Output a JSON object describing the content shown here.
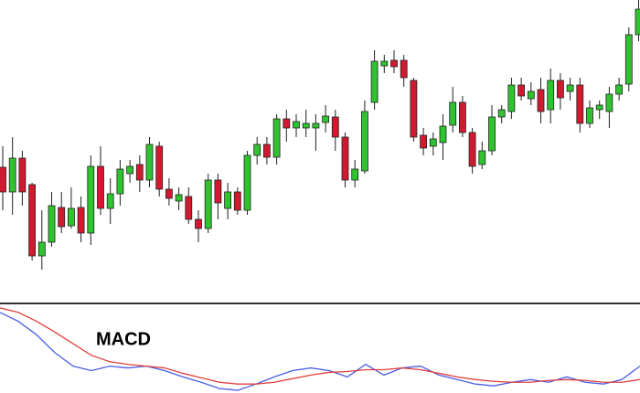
{
  "chart_data": [
    {
      "type": "candlestick",
      "open": [
        117,
        90,
        127,
        98,
        20,
        35,
        73,
        53,
        73,
        45,
        118,
        72,
        88,
        110,
        120,
        103,
        140,
        93,
        80,
        85,
        60,
        50,
        103,
        72,
        90,
        70,
        130,
        142,
        128,
        170,
        160,
        160,
        160,
        166,
        172,
        150,
        103,
        113,
        188,
        228,
        234,
        234,
        212,
        152,
        140,
        144,
        163,
        188,
        155,
        120,
        135,
        172,
        178,
        207,
        192,
        202,
        180,
        212,
        200,
        207,
        165,
        180,
        178,
        197,
        208,
        262
      ],
      "high": [
        140,
        150,
        135,
        100,
        70,
        90,
        90,
        95,
        85,
        130,
        140,
        105,
        125,
        125,
        130,
        150,
        145,
        105,
        95,
        95,
        70,
        110,
        110,
        100,
        95,
        135,
        150,
        150,
        175,
        180,
        175,
        180,
        175,
        185,
        180,
        155,
        125,
        190,
        245,
        240,
        245,
        240,
        215,
        160,
        155,
        175,
        205,
        195,
        160,
        145,
        185,
        185,
        215,
        215,
        210,
        215,
        225,
        220,
        215,
        215,
        190,
        190,
        205,
        215,
        270,
        300
      ],
      "low": [
        70,
        65,
        75,
        15,
        5,
        30,
        45,
        50,
        35,
        32,
        65,
        55,
        75,
        100,
        90,
        95,
        85,
        75,
        70,
        55,
        35,
        45,
        60,
        60,
        65,
        65,
        120,
        120,
        120,
        145,
        150,
        150,
        135,
        155,
        135,
        95,
        95,
        110,
        180,
        220,
        220,
        205,
        145,
        130,
        130,
        125,
        155,
        150,
        110,
        115,
        130,
        165,
        170,
        190,
        185,
        165,
        165,
        180,
        190,
        155,
        160,
        170,
        160,
        190,
        200,
        255
      ],
      "close": [
        90,
        127,
        90,
        20,
        35,
        75,
        52,
        72,
        45,
        118,
        72,
        88,
        115,
        118,
        103,
        142,
        93,
        83,
        87,
        60,
        50,
        103,
        78,
        90,
        70,
        130,
        142,
        128,
        170,
        160,
        167,
        165,
        165,
        173,
        150,
        103,
        115,
        178,
        233,
        233,
        227,
        215,
        150,
        138,
        148,
        162,
        188,
        155,
        118,
        135,
        172,
        180,
        207,
        195,
        200,
        178,
        212,
        193,
        207,
        165,
        182,
        185,
        197,
        207,
        262,
        290
      ],
      "up_color": "#2fc42f",
      "down_color": "#d11a2f",
      "ylim": [
        0,
        300
      ]
    },
    {
      "type": "line",
      "title": "MACD",
      "x": [
        0,
        20,
        40,
        60,
        80,
        100,
        120,
        140,
        160,
        180,
        200,
        220,
        240,
        260,
        280,
        300,
        320,
        340,
        360,
        380,
        400,
        420,
        440,
        460,
        480,
        500,
        520,
        540,
        560,
        580,
        600,
        620,
        640,
        660,
        680,
        700
      ],
      "xlim": [
        0,
        700
      ],
      "ylim": [
        0,
        100
      ],
      "series": [
        {
          "color": "#4a5ce6",
          "values": [
            90,
            80,
            65,
            45,
            30,
            25,
            30,
            28,
            30,
            25,
            18,
            12,
            5,
            3,
            10,
            18,
            25,
            28,
            25,
            18,
            32,
            20,
            28,
            30,
            20,
            15,
            10,
            8,
            12,
            15,
            12,
            18,
            12,
            10,
            15,
            30
          ]
        },
        {
          "color": "#e0403c",
          "values": [
            95,
            90,
            80,
            68,
            55,
            42,
            35,
            32,
            30,
            28,
            22,
            17,
            12,
            10,
            10,
            12,
            16,
            20,
            23,
            24,
            26,
            26,
            28,
            26,
            22,
            18,
            15,
            13,
            12,
            12,
            14,
            15,
            14,
            12,
            12,
            15
          ]
        }
      ]
    }
  ]
}
